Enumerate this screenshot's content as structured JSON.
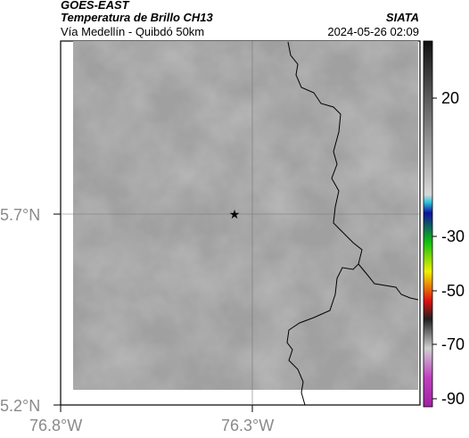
{
  "header": {
    "satellite": "GOES-EAST",
    "product": "Temperatura de Brillo CH13",
    "region": "Vía Medellín - Quibdó 50km",
    "agency": "SIATA",
    "timestamp": "2024-05-26 02:09"
  },
  "axes": {
    "y_ticks": [
      "5.7°N",
      "5.2°N"
    ],
    "x_ticks": [
      "76.8°W",
      "76.3°W"
    ]
  },
  "colorbar": {
    "ticks": [
      "20",
      "-30",
      "-50",
      "-70",
      "-90"
    ]
  },
  "marker": {
    "icon": "star-icon"
  }
}
